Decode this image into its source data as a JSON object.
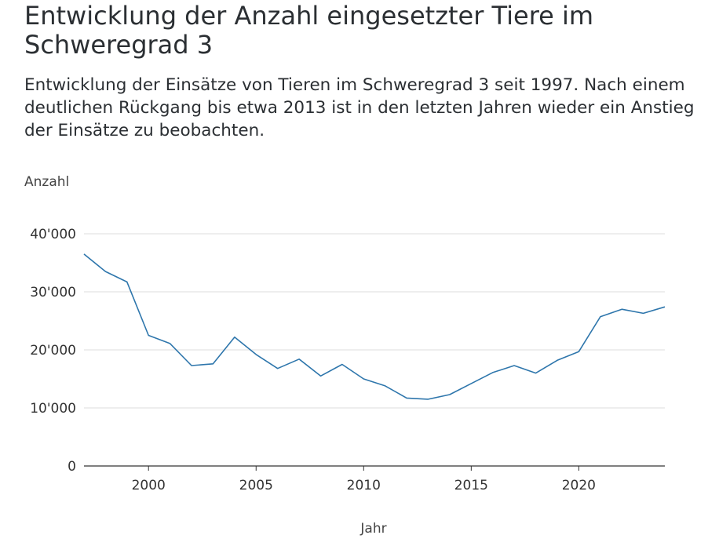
{
  "header": {
    "title": "Entwicklung der Anzahl eingesetzter Tiere im Schweregrad 3",
    "subtitle": "Entwicklung der Einsätze von Tieren im Schweregrad 3 seit 1997. Nach einem deutlichen Rückgang bis etwa 2013 ist in den letzten Jahren wieder ein Anstieg der Einsätze zu beobachten."
  },
  "chart_data": {
    "type": "line",
    "title": "Entwicklung der Anzahl eingesetzter Tiere im Schweregrad 3",
    "xlabel": "Jahr",
    "ylabel": "Anzahl",
    "xlim": [
      1997,
      2024
    ],
    "ylim": [
      0,
      40000
    ],
    "x_ticks": [
      2000,
      2005,
      2010,
      2015,
      2020
    ],
    "y_ticks": [
      0,
      10000,
      20000,
      30000,
      40000
    ],
    "y_tick_labels": [
      "0",
      "10'000",
      "20'000",
      "30'000",
      "40'000"
    ],
    "grid": true,
    "line_color": "#2e76ac",
    "series": [
      {
        "x": [
          1997,
          1998,
          1999,
          2000,
          2001,
          2002,
          2003,
          2004,
          2005,
          2006,
          2007,
          2008,
          2009,
          2010,
          2011,
          2012,
          2013,
          2014,
          2015,
          2016,
          2017,
          2018,
          2019,
          2020,
          2021,
          2022,
          2023,
          2024
        ],
        "values": [
          36500,
          33500,
          31700,
          22500,
          21100,
          17300,
          17600,
          22200,
          19200,
          16800,
          18400,
          15500,
          17500,
          15000,
          13800,
          11700,
          11500,
          12300,
          14200,
          16100,
          17300,
          16000,
          18200,
          19700,
          25700,
          27000,
          26300,
          27400
        ]
      }
    ]
  }
}
